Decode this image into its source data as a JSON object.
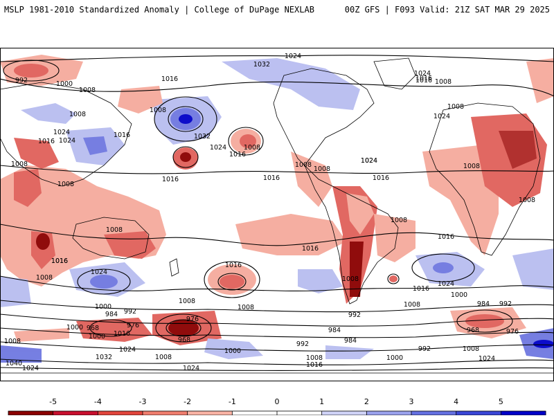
{
  "header": {
    "left_title": "MSLP 1981-2010 Standardized Anomaly | College of DuPage NEXLAB",
    "right_title": "00Z GFS | F093 Valid: 21Z SAT MAR 29 2025"
  },
  "map": {
    "isobar_labels": [
      "1024",
      "1032",
      "1024",
      "1000",
      "992",
      "1008",
      "1016",
      "1008",
      "1008",
      "1008",
      "1016",
      "1024",
      "1016",
      "1024",
      "1016",
      "1032",
      "1024",
      "1008",
      "1016",
      "1016",
      "1016",
      "1008",
      "1024",
      "1008",
      "1016",
      "1008",
      "1008",
      "1008",
      "1024",
      "1016",
      "1008",
      "1008",
      "1016",
      "1016",
      "1008",
      "1016",
      "1016",
      "1024",
      "1016",
      "1024",
      "1008",
      "1008",
      "1000",
      "984",
      "992",
      "1008",
      "1008",
      "1016",
      "1024",
      "984",
      "992",
      "968",
      "976",
      "1000",
      "1016",
      "1024",
      "976",
      "968",
      "1000",
      "992",
      "984",
      "992",
      "984",
      "968",
      "976",
      "1008",
      "1000",
      "1040",
      "1032",
      "1008",
      "1024",
      "1024",
      "1008",
      "992",
      "1000",
      "1008",
      "1008",
      "1000",
      "1016",
      "1024",
      "1008"
    ],
    "anomaly_colors": {
      "strong_negative": "#8b0000",
      "negative": "#e0605a",
      "weak_negative": "#f5aa9c",
      "weak_positive": "#b8bdf0",
      "positive": "#6f78e0",
      "strong_positive": "#0000c8"
    }
  },
  "colorbar": {
    "ticks": [
      "-5",
      "-4",
      "-3",
      "-2",
      "-1",
      "0",
      "1",
      "2",
      "3",
      "4",
      "5"
    ],
    "colors": [
      "#8b0000",
      "#c8102e",
      "#e0453c",
      "#ef7d6e",
      "#f8b2a4",
      "#ffffff",
      "#ffffff",
      "#cfd2f6",
      "#9aa1ec",
      "#6470e0",
      "#3a46d6",
      "#0000c8"
    ]
  }
}
